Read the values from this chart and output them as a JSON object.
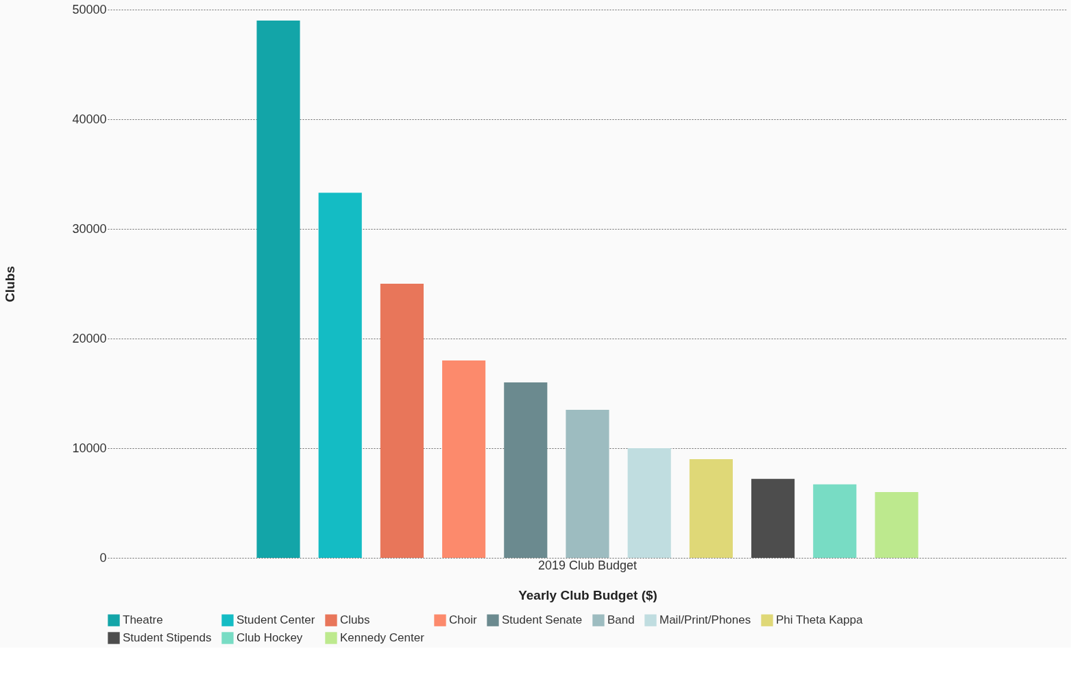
{
  "chart_data": {
    "type": "bar",
    "xlabel": "Yearly Club Budget ($)",
    "ylabel": "Clubs",
    "categories": [
      "2019 Club Budget"
    ],
    "series": [
      {
        "name": "Theatre",
        "color": "#13a5a8",
        "values": [
          49000
        ]
      },
      {
        "name": "Student Center",
        "color": "#14bcc4",
        "values": [
          33300
        ]
      },
      {
        "name": "Clubs",
        "color": "#e8765a",
        "values": [
          25000
        ]
      },
      {
        "name": "Choir",
        "color": "#fc8a6c",
        "values": [
          18000
        ]
      },
      {
        "name": "Student Senate",
        "color": "#6b8a8f",
        "values": [
          16000
        ]
      },
      {
        "name": "Band",
        "color": "#9dbcc0",
        "values": [
          13500
        ]
      },
      {
        "name": "Mail/Print/Phones",
        "color": "#c0dde0",
        "values": [
          10000
        ]
      },
      {
        "name": "Phi Theta Kappa",
        "color": "#dfd877",
        "values": [
          9000
        ]
      },
      {
        "name": "Student Stipends",
        "color": "#4d4d4d",
        "values": [
          7200
        ]
      },
      {
        "name": "Club Hockey",
        "color": "#78dcc4",
        "values": [
          6700
        ]
      },
      {
        "name": "Kennedy Center",
        "color": "#bde98e",
        "values": [
          6000
        ]
      }
    ],
    "ylim": [
      0,
      50000
    ],
    "yticks": [
      0,
      10000,
      20000,
      30000,
      40000,
      50000
    ],
    "grid": "y",
    "legend": "bottom"
  }
}
